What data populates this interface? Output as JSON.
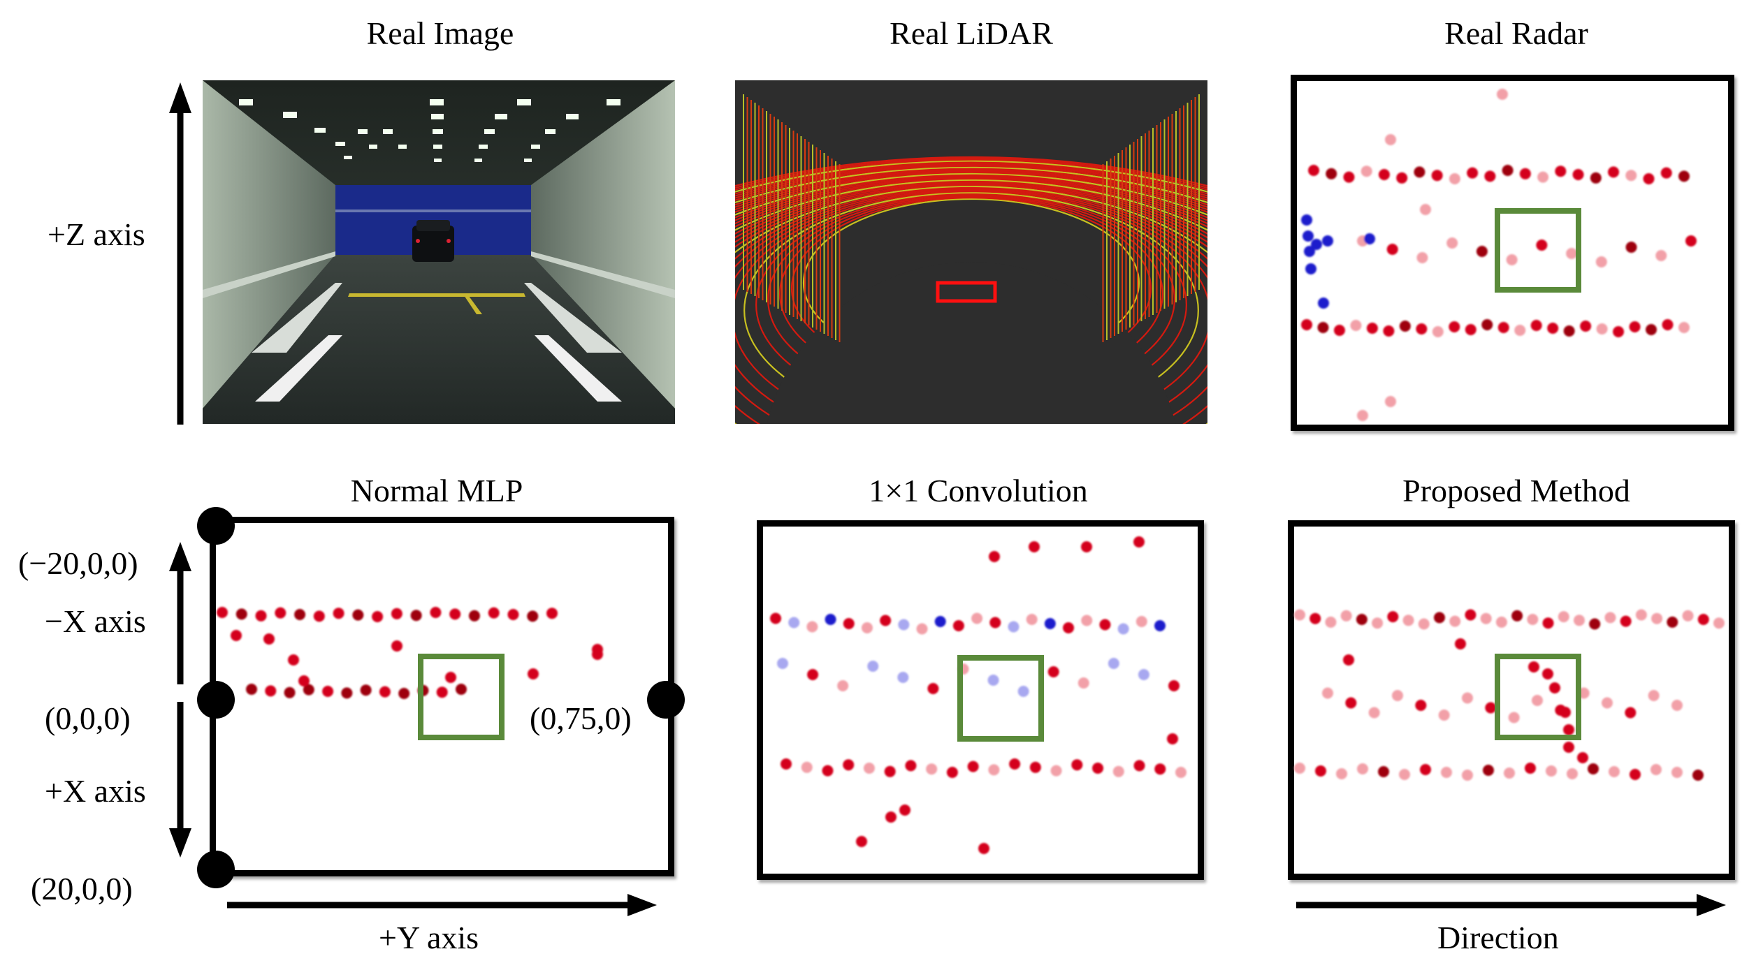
{
  "titles": {
    "real_image": "Real Image",
    "real_lidar": "Real LiDAR",
    "real_radar": "Real Radar",
    "normal_mlp": "Normal MLP",
    "conv1x1": "1×1 Convolution",
    "proposed": "Proposed Method"
  },
  "axis_labels": {
    "z_axis": "+Z axis",
    "neg_x_axis": "−X axis",
    "pos_x_axis": "+X axis",
    "y_axis": "+Y axis",
    "direction": "Direction"
  },
  "coordinates": {
    "top_left": "(−20,0,0)",
    "middle_left": "(0,0,0)",
    "bottom_left": "(20,0,0)",
    "middle_right": "(0,75,0)"
  },
  "colors": {
    "highlight_box": "#5a8a3a",
    "strong_red": "#d4001a",
    "dark_red": "#9e0010",
    "light_red": "#f2a0a8",
    "blue": "#1a1acc",
    "light_blue": "#a8a8f0"
  }
}
